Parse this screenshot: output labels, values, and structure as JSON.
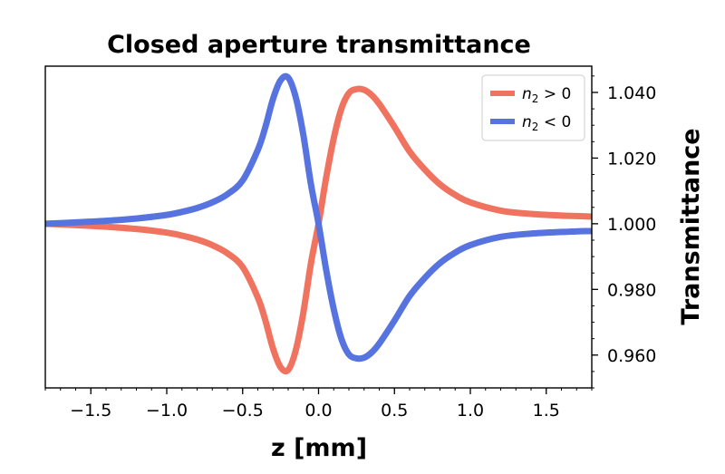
{
  "chart_data": {
    "type": "line",
    "title": "Closed aperture transmittance",
    "xlabel": "z [mm]",
    "ylabel": "Transmittance",
    "xlim": [
      -1.8,
      1.8
    ],
    "ylim": [
      0.95,
      1.048
    ],
    "y_axis_side": "right",
    "x_ticks": [
      -1.5,
      -1.0,
      -0.5,
      0.0,
      0.5,
      1.0,
      1.5
    ],
    "x_tick_labels": [
      "−1.5",
      "−1.0",
      "−0.5",
      "0.0",
      "0.5",
      "1.0",
      "1.5"
    ],
    "y_ticks": [
      0.96,
      0.98,
      1.0,
      1.02,
      1.04
    ],
    "y_tick_labels": [
      "0.960",
      "0.980",
      "1.000",
      "1.020",
      "1.040"
    ],
    "grid": false,
    "legend_position": "top-right",
    "series": [
      {
        "name": "n2 > 0",
        "legend_parts": [
          "n",
          "2",
          " > 0"
        ],
        "color": "#f07360",
        "x": [
          -1.8,
          -1.6,
          -1.4,
          -1.2,
          -1.0,
          -0.9,
          -0.8,
          -0.7,
          -0.6,
          -0.5,
          -0.4,
          -0.35,
          -0.3,
          -0.25,
          -0.2,
          -0.15,
          -0.1,
          -0.05,
          0.0,
          0.05,
          0.1,
          0.15,
          0.2,
          0.25,
          0.3,
          0.35,
          0.4,
          0.5,
          0.6,
          0.7,
          0.8,
          0.9,
          1.0,
          1.2,
          1.4,
          1.6,
          1.8
        ],
        "y": [
          1.0,
          0.9996,
          0.9991,
          0.9984,
          0.9973,
          0.9964,
          0.9952,
          0.9935,
          0.991,
          0.9868,
          0.9775,
          0.9705,
          0.962,
          0.9563,
          0.9555,
          0.9615,
          0.973,
          0.988,
          1.0,
          1.014,
          1.026,
          1.035,
          1.0398,
          1.041,
          1.0408,
          1.0392,
          1.0365,
          1.0295,
          1.022,
          1.0165,
          1.012,
          1.0088,
          1.0065,
          1.004,
          1.003,
          1.0025,
          1.0022
        ]
      },
      {
        "name": "n2 < 0",
        "legend_parts": [
          "n",
          "2",
          " < 0"
        ],
        "color": "#5673e0",
        "x": [
          -1.8,
          -1.6,
          -1.4,
          -1.2,
          -1.0,
          -0.9,
          -0.8,
          -0.7,
          -0.6,
          -0.5,
          -0.4,
          -0.35,
          -0.3,
          -0.25,
          -0.2,
          -0.15,
          -0.1,
          -0.05,
          0.0,
          0.05,
          0.1,
          0.15,
          0.2,
          0.25,
          0.3,
          0.35,
          0.4,
          0.5,
          0.6,
          0.7,
          0.8,
          0.9,
          1.0,
          1.2,
          1.4,
          1.6,
          1.8
        ],
        "y": [
          1.0,
          1.0004,
          1.0009,
          1.0016,
          1.0027,
          1.0036,
          1.0048,
          1.0065,
          1.009,
          1.0132,
          1.0225,
          1.0295,
          1.038,
          1.0437,
          1.0445,
          1.0385,
          1.027,
          1.012,
          1.0,
          0.986,
          0.974,
          0.965,
          0.9602,
          0.959,
          0.9592,
          0.9608,
          0.9635,
          0.9705,
          0.978,
          0.9835,
          0.988,
          0.9912,
          0.9935,
          0.996,
          0.997,
          0.9975,
          0.9978
        ]
      }
    ]
  }
}
